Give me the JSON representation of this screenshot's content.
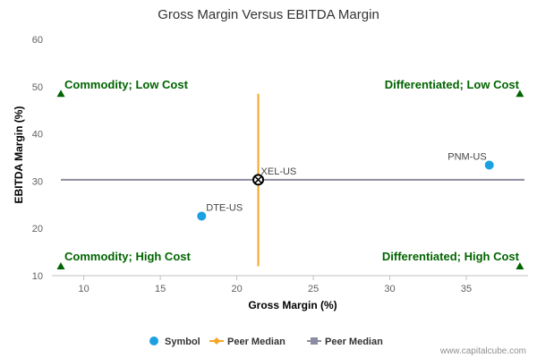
{
  "chart_data": {
    "type": "scatter",
    "title": "Gross Margin Versus EBITDA Margin",
    "xlabel": "Gross Margin (%)",
    "ylabel": "EBITDA Margin (%)",
    "xlim": [
      8.5,
      38.8
    ],
    "ylim": [
      10,
      60
    ],
    "x_ticks": [
      10,
      15,
      20,
      25,
      30,
      35
    ],
    "y_ticks": [
      10,
      20,
      30,
      40,
      50,
      60
    ],
    "points": [
      {
        "label": "DTE-US",
        "x": 17.7,
        "y": 22.6
      },
      {
        "label": "PNM-US",
        "x": 36.5,
        "y": 33.4
      },
      {
        "label": "XEL-US",
        "x": 21.4,
        "y": 30.3
      }
    ],
    "peer_median_x": 21.4,
    "peer_median_y": 30.3,
    "vertical_median_range": [
      12,
      48.5
    ],
    "quadrants": {
      "top_left": "Commodity; Low Cost",
      "top_right": "Differentiated; Low Cost",
      "bottom_left": "Commodity; High Cost",
      "bottom_right": "Differentiated; High Cost"
    },
    "quadrant_markers": [
      {
        "x": 8.5,
        "y": 48.5
      },
      {
        "x": 38.5,
        "y": 48.5
      },
      {
        "x": 8.5,
        "y": 12
      },
      {
        "x": 38.5,
        "y": 12
      }
    ],
    "legend": [
      {
        "name": "Symbol",
        "kind": "dot"
      },
      {
        "name": "Peer Median",
        "kind": "diamond-line"
      },
      {
        "name": "Peer Median",
        "kind": "square-line"
      }
    ],
    "colors": {
      "point": "#1ba1e2",
      "vertical_median": "#f5a623",
      "horizontal_median": "#8c8ca0",
      "quadrant": "#006400"
    },
    "credit": "www.capitalcube.com"
  }
}
